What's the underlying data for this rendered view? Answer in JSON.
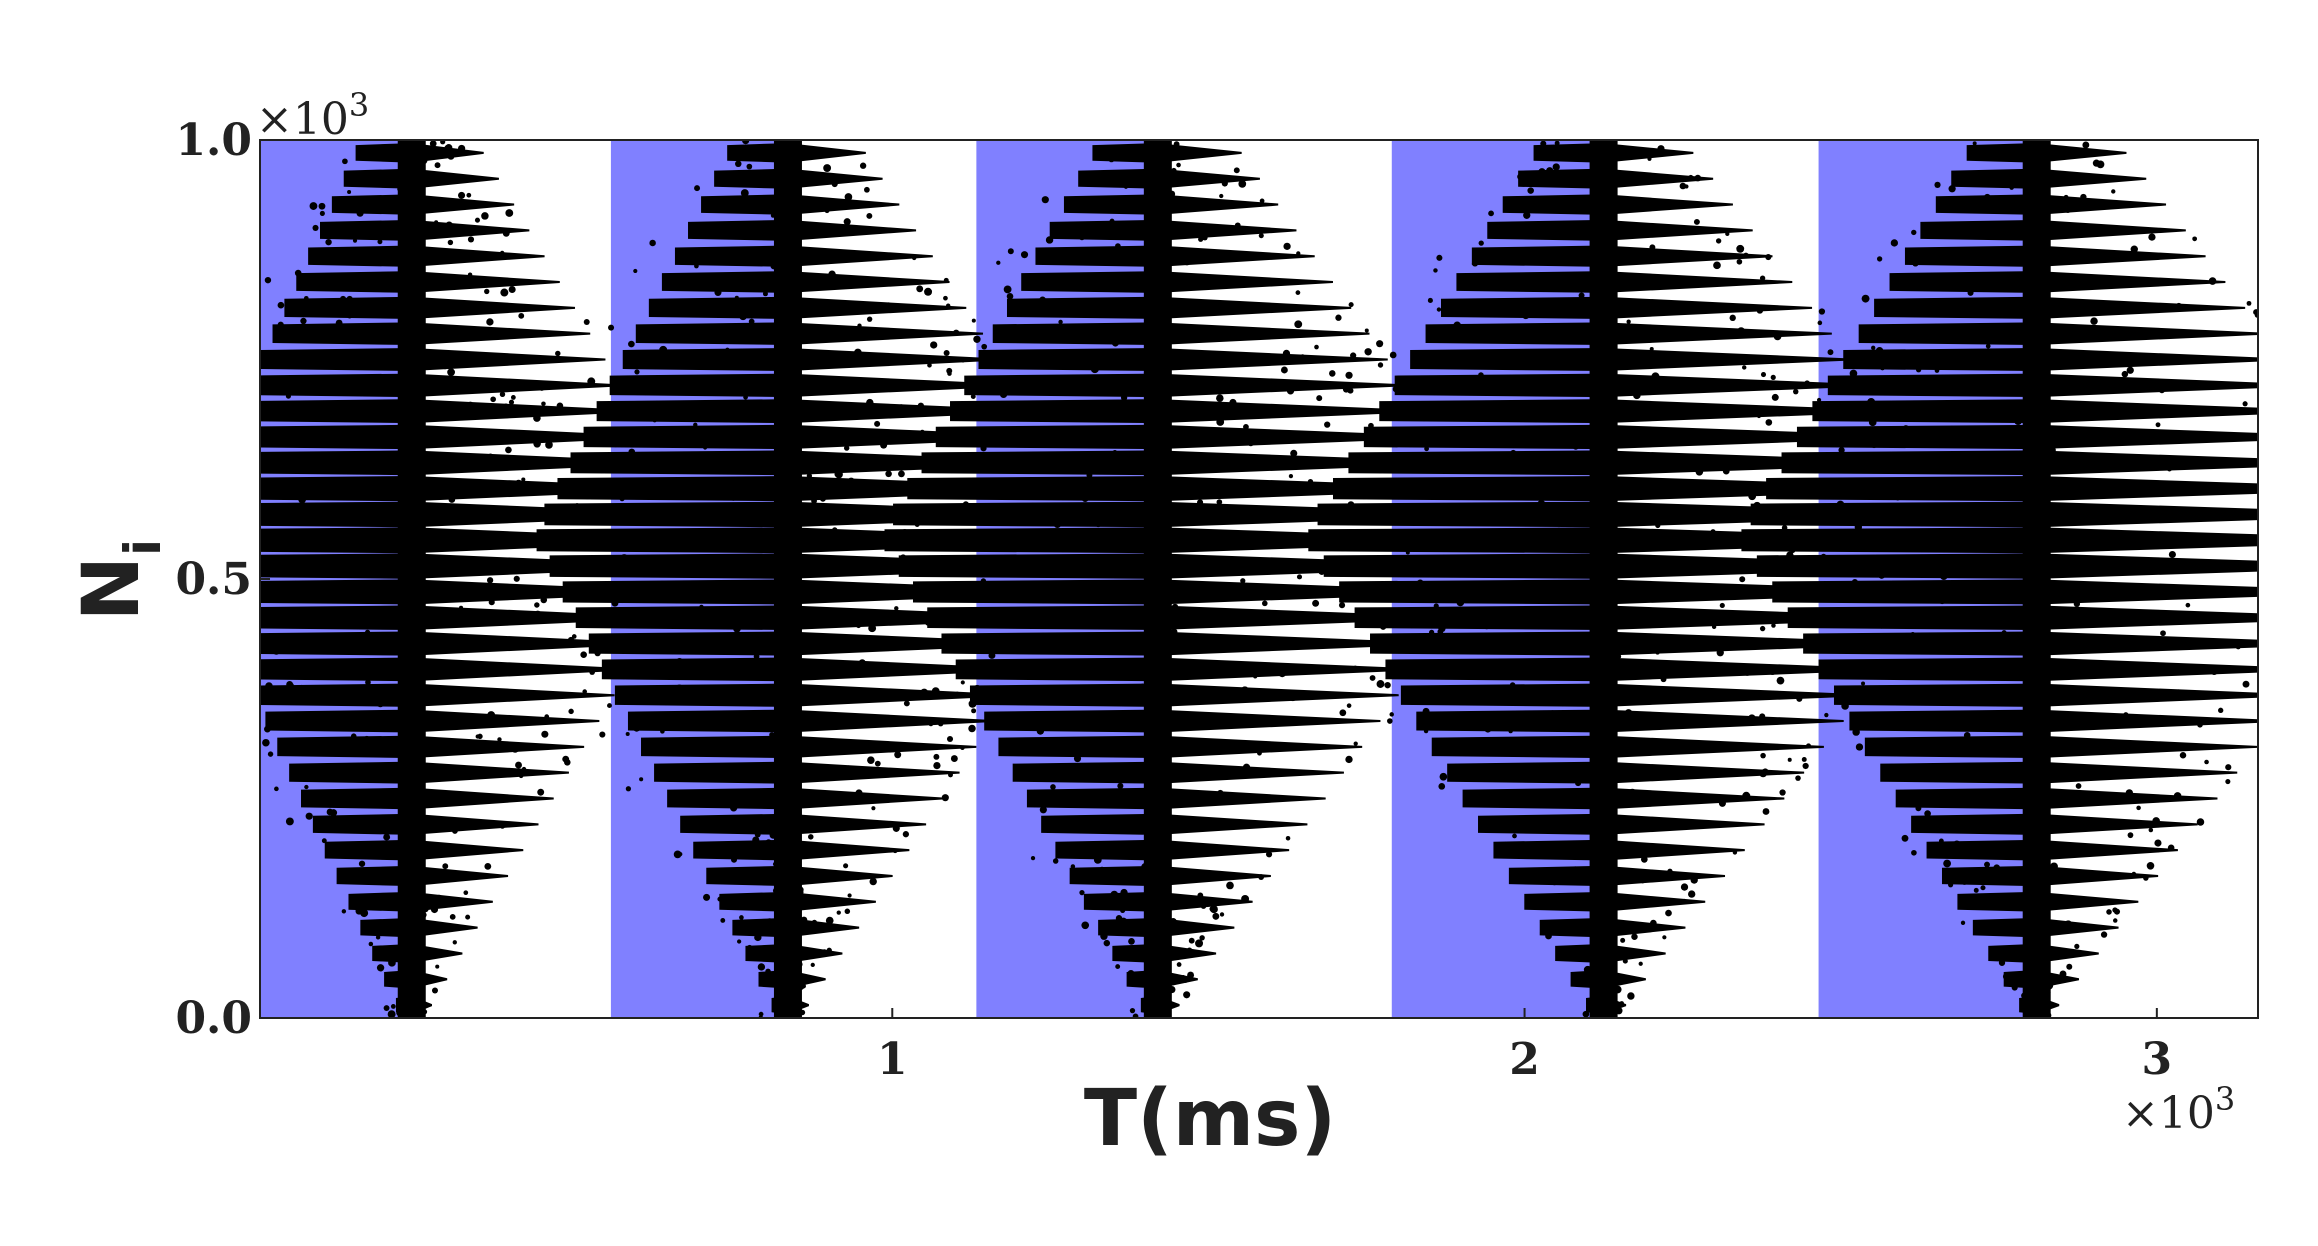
{
  "chart_data": {
    "type": "scatter",
    "title": "",
    "xlabel": "T(ms)",
    "ylabel": "N",
    "ylabel_subscript": "i",
    "xlim": [
      0,
      3.16
    ],
    "ylim": [
      0.0,
      1.0
    ],
    "x_ticks": [
      {
        "value": 1,
        "label": "1"
      },
      {
        "value": 2,
        "label": "2"
      },
      {
        "value": 3,
        "label": "3"
      }
    ],
    "y_ticks": [
      {
        "value": 0.0,
        "label": "0.0"
      },
      {
        "value": 0.5,
        "label": "0.5"
      },
      {
        "value": 1.0,
        "label": "1.0"
      }
    ],
    "x_multiplier": {
      "base": "×10",
      "exp": "3"
    },
    "y_multiplier": {
      "base": "×10",
      "exp": "3"
    },
    "grid": false,
    "legend": "none",
    "colors": {
      "shade": "#8080ff",
      "points": "#000000",
      "axes": "#222222"
    },
    "shaded_intervals": [
      [
        0.0,
        0.24
      ],
      [
        0.555,
        0.835
      ],
      [
        1.133,
        1.42
      ],
      [
        1.79,
        2.125
      ],
      [
        2.465,
        2.81
      ]
    ],
    "clusters": [
      {
        "x_center": 0.24,
        "half_width_max": 0.5,
        "level_count": 34,
        "x_min": 0.0
      },
      {
        "x_center": 0.835,
        "half_width_max": 0.55,
        "level_count": 34,
        "x_min": 0.0
      },
      {
        "x_center": 1.42,
        "half_width_max": 0.6,
        "level_count": 34,
        "x_min": 0.0
      },
      {
        "x_center": 2.125,
        "half_width_max": 0.65,
        "level_count": 34,
        "x_min": 0.0
      },
      {
        "x_center": 2.81,
        "half_width_max": 0.65,
        "level_count": 34,
        "x_min": 0.0
      }
    ],
    "neuron_spine_gap": 0.0
  }
}
